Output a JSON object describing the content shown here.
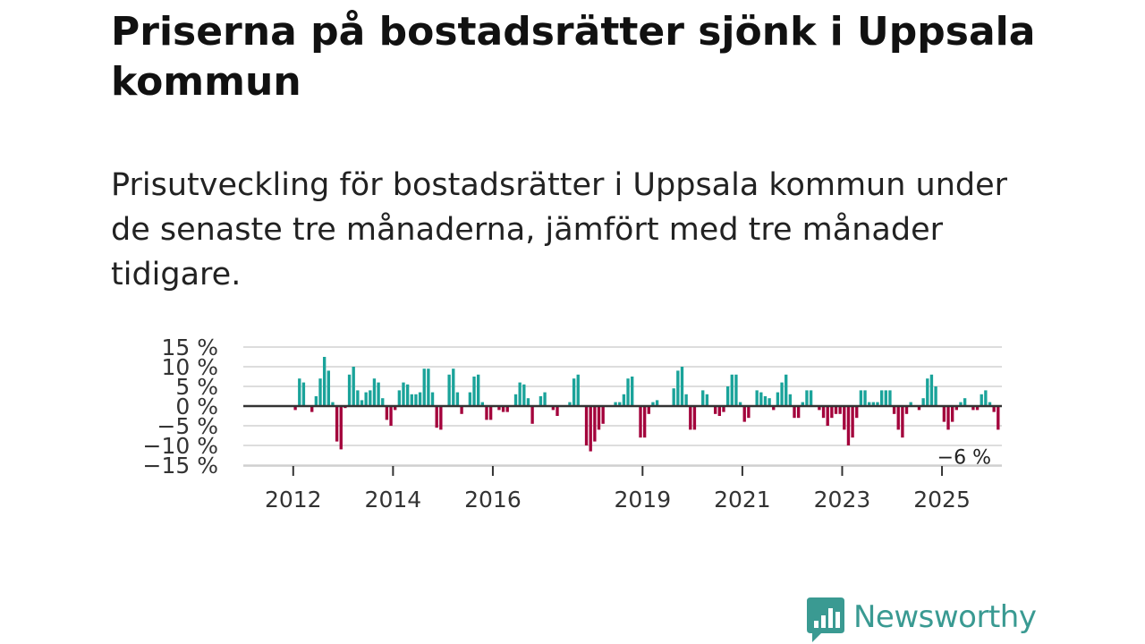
{
  "header": {
    "title": "Priserna på bostadsrätter sjönk i Uppsala kommun",
    "subtitle": "Prisutveckling för bostadsrätter i Uppsala kommun under de senaste tre månaderna, jämfört med tre månader tidigare."
  },
  "chart_data": {
    "type": "bar",
    "title": "",
    "xlabel": "",
    "ylabel": "",
    "ylim": [
      -15,
      15
    ],
    "yticks": [
      15,
      10,
      5,
      0,
      -5,
      -10,
      -15
    ],
    "ytick_labels": [
      "15 %",
      "10 %",
      "5 %",
      "0 %",
      "−5 %",
      "−10 %",
      "−15 %"
    ],
    "xtick_years": [
      2012,
      2014,
      2016,
      2019,
      2021,
      2023,
      2025
    ],
    "x_start": 2011.0,
    "x_end": 2026.2,
    "frequency": "monthly",
    "positive_color": "#1aa39a",
    "negative_color": "#a3003b",
    "series": [
      {
        "name": "Prisutveckling (%)",
        "start": "2011-01",
        "values": [
          0,
          0,
          0,
          0,
          0,
          0,
          0,
          0,
          0,
          0,
          0,
          0,
          -1,
          7,
          6,
          0,
          -1.5,
          2.5,
          7,
          12.5,
          9,
          1,
          -9,
          -11,
          -0.5,
          8,
          10,
          4,
          1.5,
          3.5,
          4,
          7,
          6,
          2,
          -3.5,
          -5,
          -1,
          4,
          6,
          5.5,
          3,
          3,
          3.5,
          9.5,
          9.5,
          3.5,
          -5.5,
          -6,
          0,
          8,
          9.5,
          3.5,
          -2,
          0,
          3.5,
          7.5,
          8,
          1,
          -3.5,
          -3.5,
          0,
          -1,
          -1.5,
          -1.5,
          0,
          3,
          6,
          5.5,
          2,
          -4.5,
          0,
          2.5,
          3.5,
          0,
          -1,
          -2.5,
          0,
          0,
          1,
          7,
          8,
          0,
          -10,
          -11.5,
          -9,
          -6,
          -4.5,
          0,
          0,
          1,
          1,
          3,
          7,
          7.5,
          0,
          -8,
          -8,
          -2,
          1,
          1.5,
          0,
          0,
          0,
          4.5,
          9,
          10,
          3,
          -6,
          -6,
          0,
          4,
          3,
          0,
          -2,
          -2.5,
          -1.5,
          5,
          8,
          8,
          1,
          -4,
          -3,
          0,
          4,
          3.5,
          2.5,
          2,
          -1,
          3.5,
          6,
          8,
          3,
          -3,
          -3,
          1,
          4,
          4,
          0,
          -1,
          -3,
          -5,
          -3,
          -2,
          -2,
          -6,
          -10,
          -8,
          -3,
          4,
          4,
          1,
          1,
          1,
          4,
          4,
          4,
          -2,
          -6,
          -8,
          -2,
          1,
          0,
          -1,
          2,
          7,
          8,
          5,
          0,
          -4,
          -6,
          -4,
          -1,
          1,
          2,
          0,
          -1,
          -1,
          3,
          4,
          1,
          -1.5,
          -6
        ]
      }
    ],
    "last_value_label": "−6 %"
  },
  "branding": {
    "name": "Newsworthy",
    "color": "#3a9a92"
  }
}
